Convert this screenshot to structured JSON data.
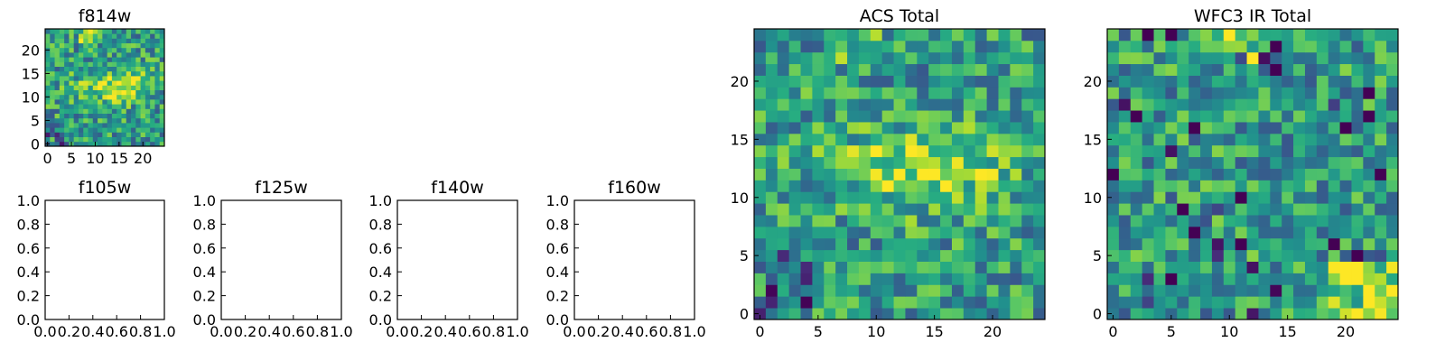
{
  "chart_data": [
    {
      "type": "heatmap",
      "title": "f814w",
      "size": 25,
      "xlim": [
        -0.5,
        24.5
      ],
      "ylim": [
        -0.5,
        24.5
      ],
      "xticks": [
        0,
        5,
        10,
        15,
        20
      ],
      "yticks": [
        0,
        5,
        10,
        15,
        20
      ],
      "tick_labels_x": [
        "0",
        "5",
        "10",
        "15",
        "20"
      ],
      "tick_labels_y": [
        "0",
        "5",
        "10",
        "15",
        "20"
      ],
      "colormap": "viridis",
      "grid": false,
      "description_values": "25x25 pixel intensity grid; bright central band near y≈10–16, dark pixels in lower-left"
    },
    {
      "type": "empty",
      "title": "f105w",
      "xlim": [
        0,
        1
      ],
      "ylim": [
        0,
        1
      ],
      "tick_labels_x": [
        "0.0",
        "0.2",
        "0.4",
        "0.6",
        "0.8",
        "1.0"
      ],
      "tick_labels_y": [
        "0.0",
        "0.2",
        "0.4",
        "0.6",
        "0.8",
        "1.0"
      ]
    },
    {
      "type": "empty",
      "title": "f125w",
      "xlim": [
        0,
        1
      ],
      "ylim": [
        0,
        1
      ],
      "tick_labels_x": [
        "0.0",
        "0.2",
        "0.4",
        "0.6",
        "0.8",
        "1.0"
      ],
      "tick_labels_y": [
        "0.0",
        "0.2",
        "0.4",
        "0.6",
        "0.8",
        "1.0"
      ]
    },
    {
      "type": "empty",
      "title": "f140w",
      "xlim": [
        0,
        1
      ],
      "ylim": [
        0,
        1
      ],
      "tick_labels_x": [
        "0.0",
        "0.2",
        "0.4",
        "0.6",
        "0.8",
        "1.0"
      ],
      "tick_labels_y": [
        "0.0",
        "0.2",
        "0.4",
        "0.6",
        "0.8",
        "1.0"
      ]
    },
    {
      "type": "empty",
      "title": "f160w",
      "xlim": [
        0,
        1
      ],
      "ylim": [
        0,
        1
      ],
      "tick_labels_x": [
        "0.0",
        "0.2",
        "0.4",
        "0.6",
        "0.8",
        "1.0"
      ],
      "tick_labels_y": [
        "0.0",
        "0.2",
        "0.4",
        "0.6",
        "0.8",
        "1.0"
      ]
    },
    {
      "type": "heatmap",
      "title": "ACS Total",
      "size": 25,
      "xlim": [
        -0.5,
        24.5
      ],
      "ylim": [
        -0.5,
        24.5
      ],
      "xticks": [
        0,
        5,
        10,
        15,
        20
      ],
      "yticks": [
        0,
        5,
        10,
        15,
        20
      ],
      "tick_labels_x": [
        "0",
        "5",
        "10",
        "15",
        "20"
      ],
      "tick_labels_y": [
        "0",
        "5",
        "10",
        "15",
        "20"
      ],
      "colormap": "viridis",
      "grid": false
    },
    {
      "type": "heatmap",
      "title": "WFC3 IR Total",
      "size": 25,
      "xlim": [
        -0.5,
        24.5
      ],
      "ylim": [
        -0.5,
        24.5
      ],
      "xticks": [
        0,
        5,
        10,
        15,
        20
      ],
      "yticks": [
        0,
        5,
        10,
        15,
        20
      ],
      "tick_labels_x": [
        "0",
        "5",
        "10",
        "15",
        "20"
      ],
      "tick_labels_y": [
        "0",
        "5",
        "10",
        "15",
        "20"
      ],
      "colormap": "viridis",
      "grid": false
    }
  ]
}
